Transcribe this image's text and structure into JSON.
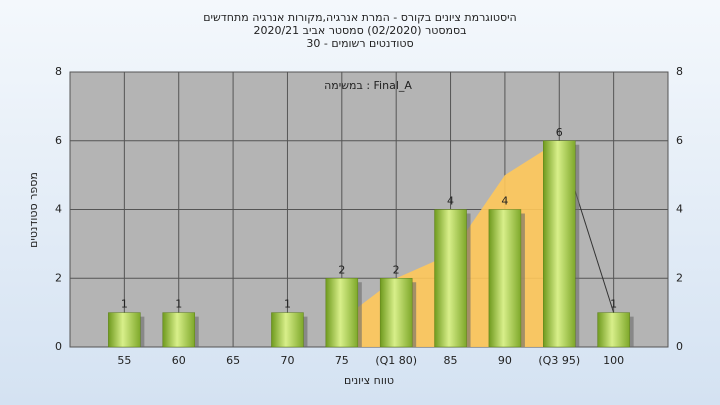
{
  "chart_data": {
    "type": "bar",
    "title": [
      "היסטוגרמת ציונים בקורס - המרת אנרגיה,מקורות אנרגיה מתחדשים",
      "בסמסטר  (02/2020)  סמסטר אביב 2020/21",
      "סטודנטים רשומים - 30"
    ],
    "annotation": "במשימה : Final_A",
    "x_label": "טווח ציונים",
    "y_label": "מספר סטודנטים",
    "categories": [
      "55",
      "60",
      "65",
      "70",
      "75",
      "(Q1 80)",
      "85",
      "90",
      "(Q3 95)",
      "100"
    ],
    "values": [
      1,
      1,
      null,
      1,
      2,
      2,
      4,
      4,
      6,
      1
    ],
    "color": "#9cc43c",
    "area_values": [
      null,
      null,
      null,
      null,
      0.8,
      2,
      2.7,
      5,
      6,
      null
    ],
    "area_color": "#ffc85a",
    "line_values": [
      null,
      null,
      null,
      null,
      null,
      null,
      null,
      null,
      6,
      1
    ],
    "ylim": [
      0,
      8
    ],
    "yticks": [
      0,
      2,
      4,
      6,
      8
    ],
    "grid": true
  }
}
